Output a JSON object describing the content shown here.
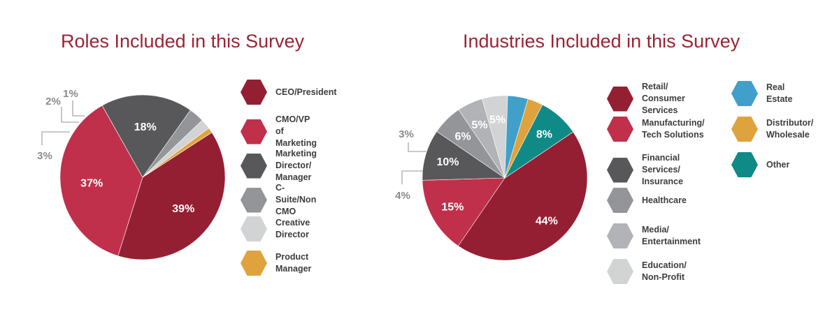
{
  "chart_data": [
    {
      "type": "pie",
      "title": "Roles Included in this Survey",
      "slices": [
        {
          "label": "CEO/President",
          "value": 39,
          "display": "39%",
          "color": "#951f32",
          "label_pos": "inside"
        },
        {
          "label": "CMO/VP of Marketing",
          "value": 37,
          "display": "37%",
          "color": "#c0304a",
          "label_pos": "inside"
        },
        {
          "label": "Marketing Director/\nManager",
          "value": 18,
          "display": "18%",
          "color": "#58585a",
          "label_pos": "inside"
        },
        {
          "label": "C-Suite/Non CMO",
          "value": 3,
          "display": "3%",
          "color": "#939598",
          "label_pos": "outside"
        },
        {
          "label": "Creative Director",
          "value": 2,
          "display": "2%",
          "color": "#d1d3d4",
          "label_pos": "outside"
        },
        {
          "label": "Product Manager",
          "value": 1,
          "display": "1%",
          "color": "#dfa33d",
          "label_pos": "outside"
        }
      ]
    },
    {
      "type": "pie",
      "title": "Industries Included in this Survey",
      "slices": [
        {
          "label": "Retail/\nConsumer Services",
          "value": 44,
          "display": "44%",
          "color": "#951f32",
          "label_pos": "inside"
        },
        {
          "label": "Manufacturing/\nTech Solutions",
          "value": 15,
          "display": "15%",
          "color": "#c0304a",
          "label_pos": "inside"
        },
        {
          "label": "Financial Services/\nInsurance",
          "value": 10,
          "display": "10%",
          "color": "#58585a",
          "label_pos": "inside"
        },
        {
          "label": "Healthcare",
          "value": 6,
          "display": "6%",
          "color": "#939598",
          "label_pos": "inside"
        },
        {
          "label": "Media/\nEntertainment",
          "value": 5,
          "display": "5%",
          "color": "#b1b3b6",
          "label_pos": "inside"
        },
        {
          "label": "Education/\nNon-Profit",
          "value": 5,
          "display": "5%",
          "color": "#d1d3d4",
          "label_pos": "inside"
        },
        {
          "label": "Real Estate",
          "value": 4,
          "display": "4%",
          "color": "#41a0c9",
          "label_pos": "outside"
        },
        {
          "label": "Distributor/\nWholesale",
          "value": 3,
          "display": "3%",
          "color": "#dfa33d",
          "label_pos": "outside"
        },
        {
          "label": "Other",
          "value": 8,
          "display": "8%",
          "color": "#0f8a87",
          "label_pos": "inside"
        }
      ]
    }
  ]
}
